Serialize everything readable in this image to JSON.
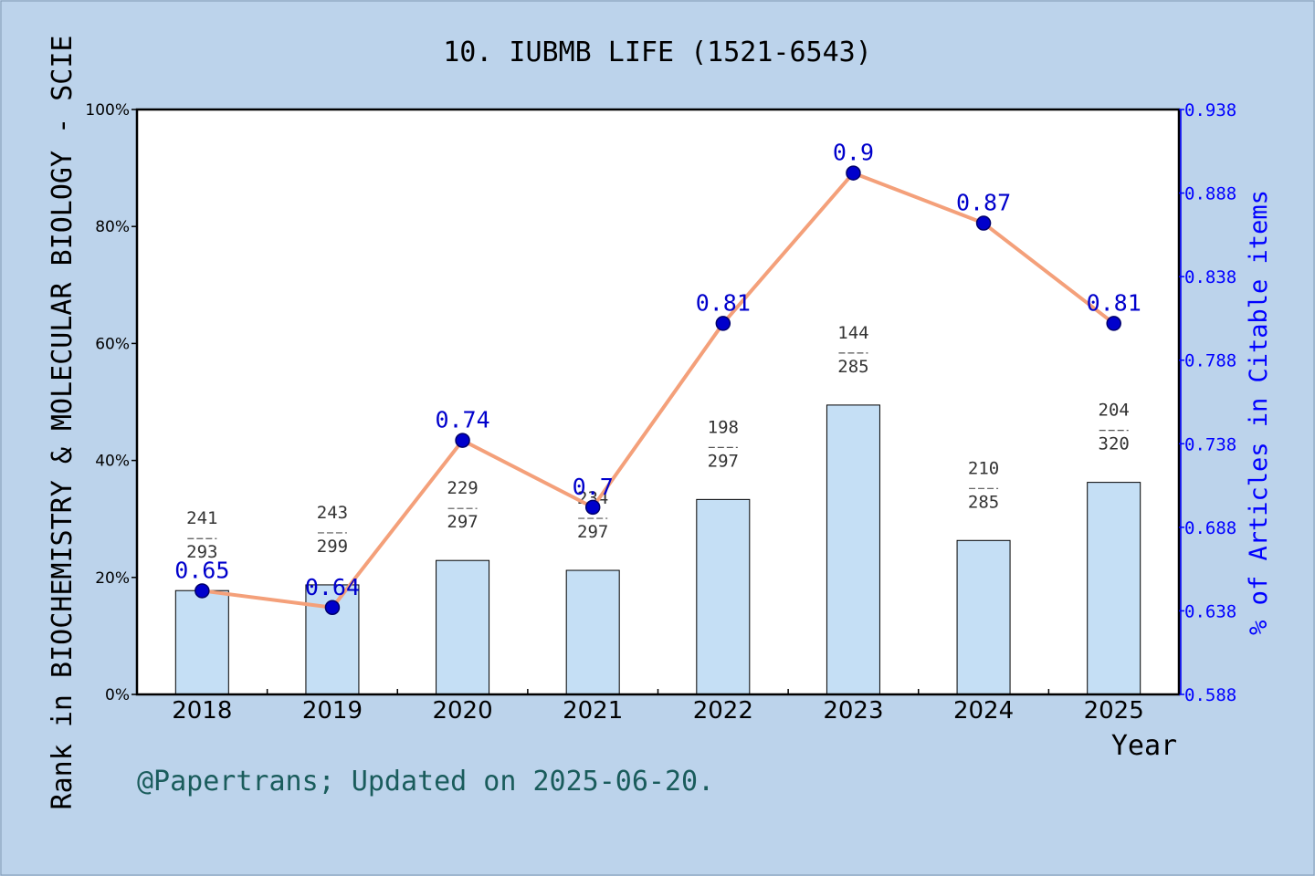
{
  "chart_data": {
    "type": "bar",
    "title": "10. IUBMB LIFE (1521-6543)",
    "xlabel": "Year",
    "ylabel": "Rank in BIOCHEMISTRY & MOLECULAR BIOLOGY - SCIE",
    "y2label": "% of Articles in Citable items",
    "categories": [
      "2018",
      "2019",
      "2020",
      "2021",
      "2022",
      "2023",
      "2024",
      "2025"
    ],
    "bar_values": [
      17.75,
      18.73,
      22.9,
      21.21,
      33.33,
      49.47,
      26.32,
      36.25
    ],
    "bar_labels": [
      {
        "num": "241",
        "den": "293"
      },
      {
        "num": "243",
        "den": "299"
      },
      {
        "num": "229",
        "den": "297"
      },
      {
        "num": "234",
        "den": "297"
      },
      {
        "num": "198",
        "den": "297"
      },
      {
        "num": "144",
        "den": "285"
      },
      {
        "num": "210",
        "den": "285"
      },
      {
        "num": "204",
        "den": "320"
      }
    ],
    "line_values": [
      0.65,
      0.64,
      0.74,
      0.7,
      0.81,
      0.9,
      0.87,
      0.81
    ],
    "line_labels": [
      "0.65",
      "0.64",
      "0.74",
      "0.7",
      "0.81",
      "0.9",
      "0.87",
      "0.81"
    ],
    "ylim": [
      0,
      100
    ],
    "y_ticks": [
      "0%",
      "20%",
      "40%",
      "60%",
      "80%",
      "100%"
    ],
    "y2lim": [
      0.588,
      0.938
    ],
    "y2_ticks": [
      "0.588",
      "0.638",
      "0.688",
      "0.738",
      "0.788",
      "0.838",
      "0.888",
      "0.938"
    ],
    "colors": {
      "background": "#bcd3eb",
      "plot_background": "#ffffff",
      "bar_fill": "#c5dff5",
      "line": "#f4a07a",
      "marker": "#0000cc",
      "right_axis": "#0000ff",
      "footer": "#1a5c5c"
    }
  },
  "footer": "@Papertrans; Updated on 2025-06-20."
}
